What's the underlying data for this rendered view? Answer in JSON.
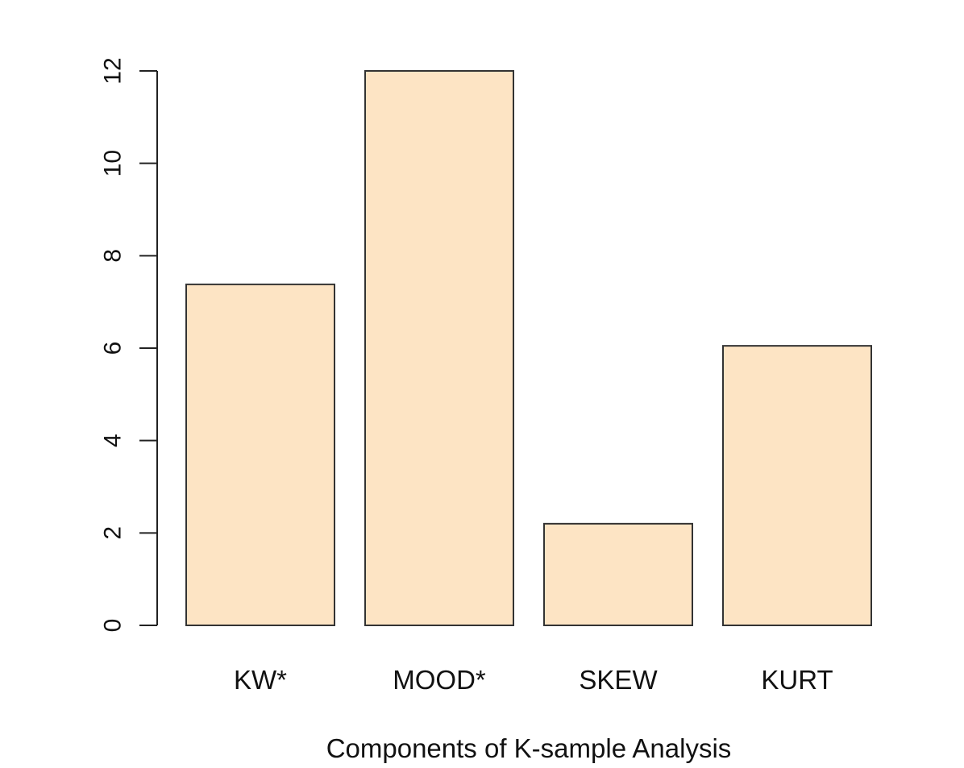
{
  "chart_data": {
    "type": "bar",
    "title": "",
    "xlabel": "Components of K-sample Analysis",
    "ylabel": "",
    "categories": [
      "KW*",
      "MOOD*",
      "SKEW",
      "KURT"
    ],
    "values": [
      7.38,
      12.0,
      2.2,
      6.05
    ],
    "ylim": [
      0,
      12
    ],
    "yticks": [
      "0",
      "2",
      "4",
      "6",
      "8",
      "10",
      "12"
    ],
    "grid": false,
    "legend": "none",
    "colors": {
      "bar_fill": "#fde4c4",
      "bar_stroke": "#333333",
      "axis": "#222222",
      "text": "#111111"
    }
  }
}
